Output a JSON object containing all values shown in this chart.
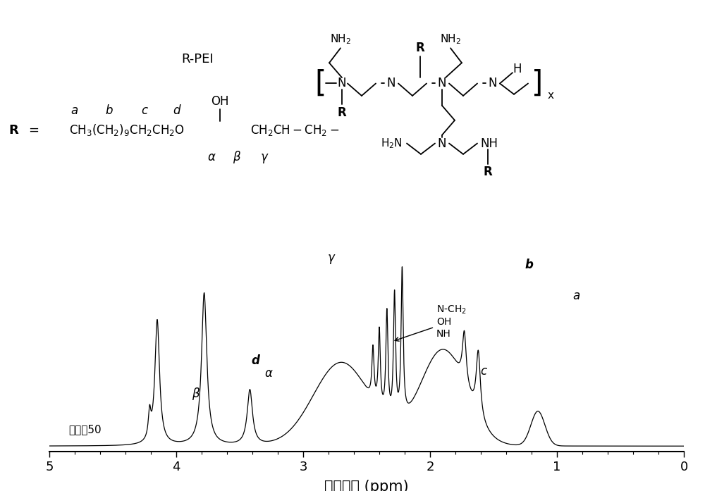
{
  "background_color": "#ffffff",
  "spectrum_color": "#000000",
  "xlim": [
    5,
    0
  ],
  "ylim": [
    -0.03,
    1.1
  ],
  "xlabel": "化学位移 (ppm)",
  "tick_fontsize": 13,
  "xlabel_fontsize": 15
}
